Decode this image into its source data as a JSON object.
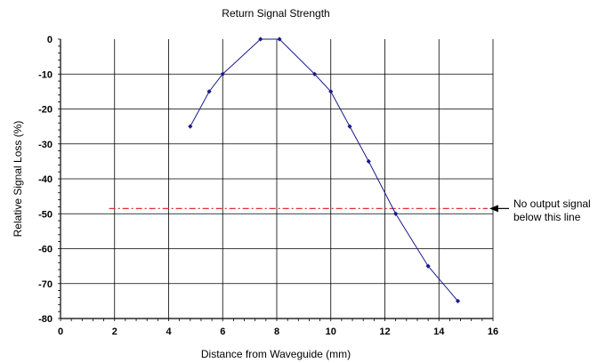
{
  "chart_data": {
    "type": "line",
    "title": "Return Signal Strength",
    "xlabel": "Distance from Waveguide (mm)",
    "ylabel": "Relative Signal Loss (%)",
    "xlim": [
      0,
      16
    ],
    "ylim": [
      -80,
      0
    ],
    "x_ticks": [
      0,
      2,
      4,
      6,
      8,
      10,
      12,
      14,
      16
    ],
    "y_ticks": [
      0,
      -10,
      -20,
      -30,
      -40,
      -50,
      -60,
      -70,
      -80
    ],
    "x_tick_labels": [
      "0",
      "2",
      "4",
      "6",
      "8",
      "10",
      "12",
      "14",
      "16"
    ],
    "y_tick_labels": [
      "0",
      "-10",
      "-20",
      "-30",
      "-40",
      "-50",
      "-60",
      "-70",
      "-80"
    ],
    "grid": true,
    "series": [
      {
        "color": "#1a1a8c",
        "marker": "diamond",
        "points": [
          {
            "x": 4.8,
            "y": -25
          },
          {
            "x": 5.5,
            "y": -15
          },
          {
            "x": 6.0,
            "y": -10
          },
          {
            "x": 7.4,
            "y": 0
          },
          {
            "x": 8.1,
            "y": 0
          },
          {
            "x": 9.4,
            "y": -10
          },
          {
            "x": 10.0,
            "y": -15
          },
          {
            "x": 10.7,
            "y": -25
          },
          {
            "x": 11.4,
            "y": -35
          },
          {
            "x": 12.4,
            "y": -50
          },
          {
            "x": 13.6,
            "y": -65
          },
          {
            "x": 14.7,
            "y": -75
          }
        ]
      }
    ],
    "threshold": {
      "y": -48.5,
      "x_range": [
        1.8,
        15.8
      ],
      "color": "#e03030",
      "style": "dash-dot"
    },
    "annotation": {
      "lines": [
        "No output signal",
        "below this line"
      ]
    }
  }
}
